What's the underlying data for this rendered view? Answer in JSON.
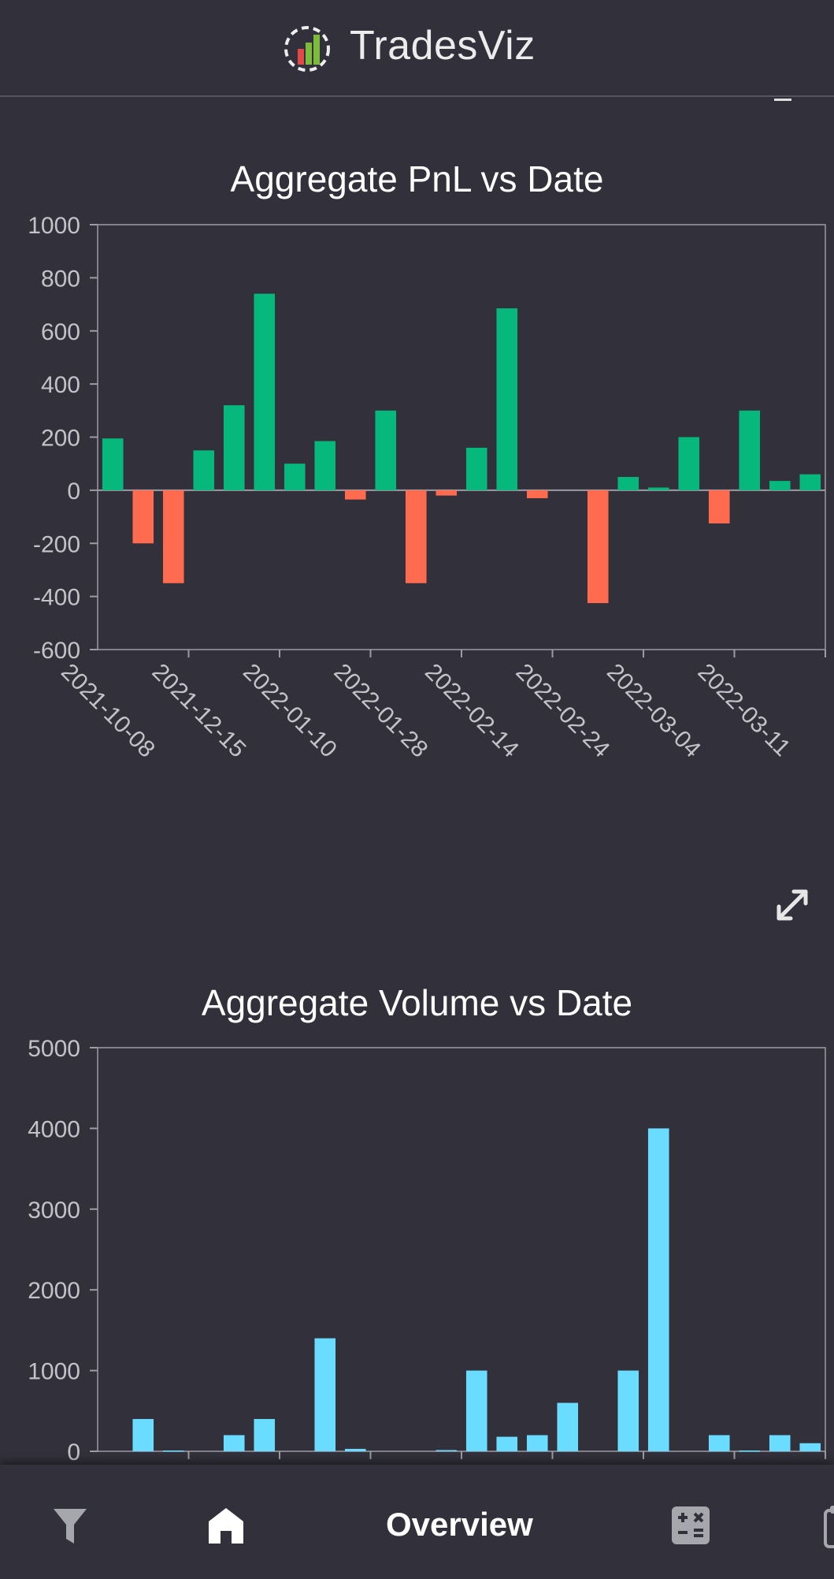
{
  "header": {
    "brand": "TradesViz"
  },
  "nav": {
    "overview_label": "Overview"
  },
  "colors": {
    "positive": "#06b87c",
    "negative": "#ff6b4f",
    "volume": "#6adcff",
    "background": "#32313b"
  },
  "chart_data": [
    {
      "type": "bar",
      "title": "Aggregate PnL vs Date",
      "xlabel": "",
      "ylabel": "",
      "ylim": [
        -600,
        1000
      ],
      "yticks": [
        1000,
        800,
        600,
        400,
        200,
        0,
        -200,
        -400,
        -600
      ],
      "xtick_labels": [
        "2021-10-08",
        "2021-12-15",
        "2022-01-10",
        "2022-01-28",
        "2022-02-14",
        "2022-02-24",
        "2022-03-04",
        "2022-03-11"
      ],
      "values": [
        195,
        -200,
        -350,
        150,
        320,
        740,
        100,
        185,
        -35,
        300,
        -350,
        -20,
        160,
        685,
        -30,
        0,
        -425,
        50,
        10,
        200,
        -125,
        300,
        35,
        60
      ],
      "grid": false
    },
    {
      "type": "bar",
      "title": "Aggregate Volume vs Date",
      "xlabel": "",
      "ylabel": "",
      "ylim": [
        0,
        5000
      ],
      "yticks": [
        5000,
        4000,
        3000,
        2000,
        1000,
        0
      ],
      "values": [
        0,
        400,
        10,
        0,
        200,
        400,
        0,
        1400,
        30,
        0,
        0,
        15,
        1000,
        180,
        200,
        600,
        0,
        1000,
        4000,
        0,
        200,
        10,
        200,
        100
      ],
      "grid": false
    }
  ]
}
